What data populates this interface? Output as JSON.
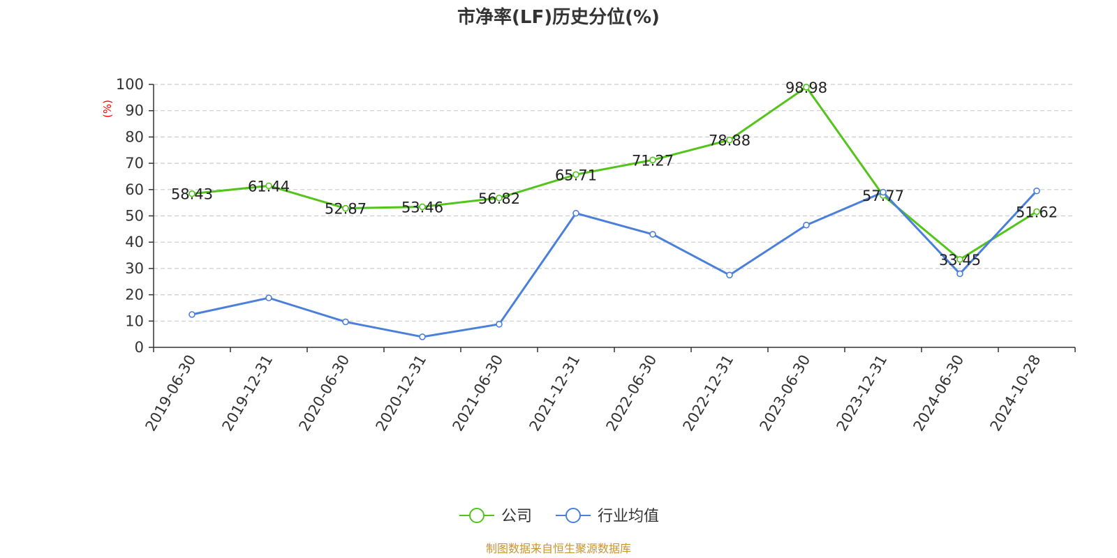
{
  "chart_data": {
    "type": "line",
    "title": "市净率(LF)历史分位(%)",
    "ylabel": "(%)",
    "ylim": [
      0,
      100
    ],
    "yticks": [
      0,
      10,
      20,
      30,
      40,
      50,
      60,
      70,
      80,
      90,
      100
    ],
    "grid": "horizontal-dashed",
    "legend_position": "bottom-center",
    "categories": [
      "2019-06-30",
      "2019-12-31",
      "2020-06-30",
      "2020-12-31",
      "2021-06-30",
      "2021-12-31",
      "2022-06-30",
      "2022-12-31",
      "2023-06-30",
      "2023-12-31",
      "2024-06-30",
      "2024-10-28"
    ],
    "series": [
      {
        "name": "公司",
        "color": "#52c41a",
        "labeled": true,
        "values": [
          58.43,
          61.44,
          52.87,
          53.46,
          56.82,
          65.71,
          71.27,
          78.88,
          98.98,
          57.77,
          33.45,
          51.62
        ],
        "labels": [
          "58.43",
          "61.44",
          "52.87",
          "53.46",
          "56.82",
          "65.71",
          "71.27",
          "78.88",
          "98.98",
          "57.77",
          "33.45",
          "51.62"
        ]
      },
      {
        "name": "行业均值",
        "color": "#4a7fdc",
        "labeled": false,
        "values": [
          12.5,
          18.8,
          9.7,
          4.0,
          8.8,
          51.0,
          43.0,
          27.5,
          46.5,
          59.0,
          28.0,
          59.5
        ]
      }
    ],
    "source": "制图数据来自恒生聚源数据库",
    "colors": {
      "unit": "#ff0000",
      "source": "#c8952e",
      "grid": "#cccccc",
      "axis": "#333333"
    }
  }
}
